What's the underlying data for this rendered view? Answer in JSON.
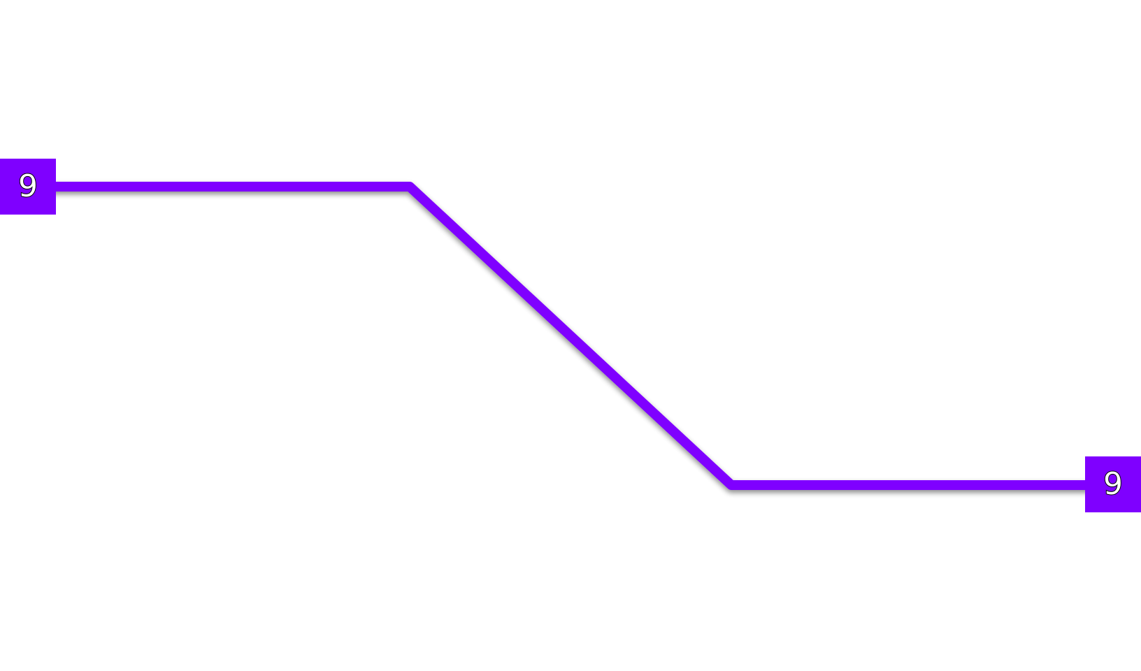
{
  "route": {
    "color": "#7f00ff",
    "shadow_color": "#000000",
    "start_terminal": {
      "label": "9"
    },
    "end_terminal": {
      "label": "9"
    }
  }
}
